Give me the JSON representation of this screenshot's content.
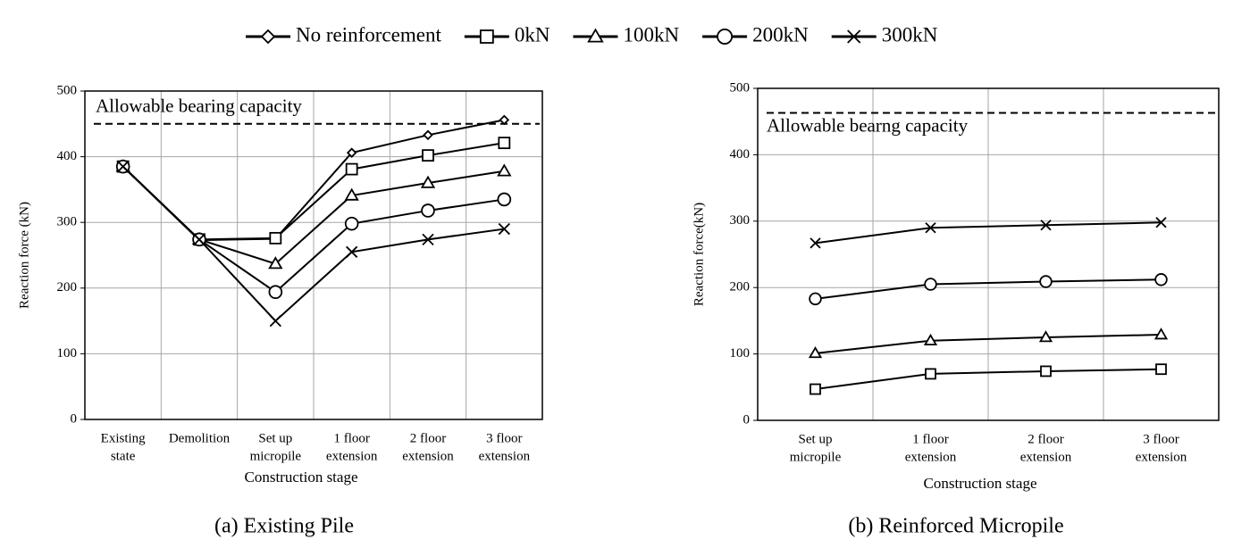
{
  "chart_data": [
    {
      "type": "line",
      "caption": "(a) Existing Pile",
      "x_label": "Construction stage",
      "y_label": "Reaction force (kN)",
      "categories": [
        [
          "Existing",
          "state"
        ],
        [
          "Demolition"
        ],
        [
          "Set up",
          "micropile"
        ],
        [
          "1 floor",
          "extension"
        ],
        [
          "2 floor",
          "extension"
        ],
        [
          "3 floor",
          "extension"
        ]
      ],
      "ylim": [
        0,
        500
      ],
      "yticks": [
        0,
        100,
        200,
        300,
        400,
        500
      ],
      "grid": true,
      "annotation": {
        "text": "Allowable bearing capacity",
        "value": 450
      },
      "series": [
        {
          "name": "No reinforcement",
          "color": "#000000",
          "marker": "diamond",
          "values": [
            385,
            273,
            275,
            406,
            433,
            456
          ]
        },
        {
          "name": "0kN",
          "color": "#000000",
          "marker": "square",
          "values": [
            385,
            274,
            276,
            381,
            402,
            421
          ]
        },
        {
          "name": "100kN",
          "color": "#000000",
          "marker": "triangle",
          "values": [
            385,
            274,
            237,
            341,
            360,
            378
          ]
        },
        {
          "name": "200kN",
          "color": "#000000",
          "marker": "circle",
          "values": [
            385,
            274,
            194,
            298,
            318,
            335
          ]
        },
        {
          "name": "300kN",
          "color": "#000000",
          "marker": "x",
          "values": [
            385,
            274,
            150,
            255,
            274,
            290
          ]
        }
      ]
    },
    {
      "type": "line",
      "caption": "(b) Reinforced Micropile",
      "x_label": "Construction stage",
      "y_label": "Reaction force(kN)",
      "categories": [
        [
          "Set up",
          "micropile"
        ],
        [
          "1 floor",
          "extension"
        ],
        [
          "2 floor",
          "extension"
        ],
        [
          "3 floor",
          "extension"
        ]
      ],
      "ylim": [
        0,
        500
      ],
      "yticks": [
        0,
        100,
        200,
        300,
        400,
        500
      ],
      "grid": true,
      "annotation": {
        "text": "Allowable bearng capacity",
        "value": 463
      },
      "series": [
        {
          "name": "0kN",
          "color": "#000000",
          "marker": "square",
          "values": [
            47,
            70,
            74,
            77
          ]
        },
        {
          "name": "100kN",
          "color": "#000000",
          "marker": "triangle",
          "values": [
            101,
            120,
            125,
            129
          ]
        },
        {
          "name": "200kN",
          "color": "#000000",
          "marker": "circle",
          "values": [
            183,
            205,
            209,
            212
          ]
        },
        {
          "name": "300kN",
          "color": "#000000",
          "marker": "x",
          "values": [
            267,
            290,
            294,
            298
          ]
        }
      ]
    }
  ]
}
